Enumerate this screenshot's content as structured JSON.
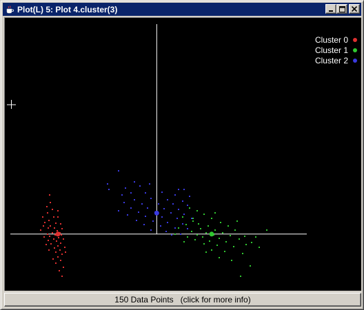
{
  "window": {
    "title": "Plot(L) 5: Plot 4.cluster(3)",
    "title_bar_color": "#0a246a"
  },
  "title_buttons": {
    "minimize_icon": "minimize-icon",
    "maximize_icon": "maximize-icon",
    "close_icon": "close-icon"
  },
  "status": {
    "label": "150 Data Points   (click for more info)"
  },
  "chart_data": {
    "type": "scatter",
    "background": "#000000",
    "axes_color": "#ffffff",
    "legend_position": "top-right",
    "series": [
      {
        "name": "Cluster 0",
        "color": "#e03030",
        "centroid": [
          -2.7,
          0.0
        ],
        "points": [
          [
            -2.92,
            0.74
          ],
          [
            -3.0,
            0.52
          ],
          [
            -2.85,
            0.47
          ],
          [
            -2.98,
            0.4
          ],
          [
            -3.12,
            0.33
          ],
          [
            -2.82,
            0.33
          ],
          [
            -2.7,
            0.32
          ],
          [
            -2.95,
            0.26
          ],
          [
            -3.05,
            0.22
          ],
          [
            -2.75,
            0.21
          ],
          [
            -2.62,
            0.2
          ],
          [
            -2.9,
            0.16
          ],
          [
            -2.97,
            0.12
          ],
          [
            -2.8,
            0.11
          ],
          [
            -2.58,
            0.1
          ],
          [
            -3.18,
            0.07
          ],
          [
            -2.72,
            0.06
          ],
          [
            -2.86,
            0.03
          ],
          [
            -2.65,
            0.02
          ],
          [
            -2.99,
            0.0
          ],
          [
            -2.78,
            -0.01
          ],
          [
            -2.6,
            -0.02
          ],
          [
            -2.92,
            -0.04
          ],
          [
            -3.08,
            -0.06
          ],
          [
            -2.68,
            -0.07
          ],
          [
            -2.82,
            -0.09
          ],
          [
            -2.55,
            -0.1
          ],
          [
            -2.96,
            -0.12
          ],
          [
            -2.74,
            -0.14
          ],
          [
            -2.62,
            -0.17
          ],
          [
            -2.88,
            -0.19
          ],
          [
            -2.7,
            -0.22
          ],
          [
            -2.52,
            -0.25
          ],
          [
            -2.8,
            -0.27
          ],
          [
            -2.64,
            -0.3
          ],
          [
            -2.76,
            -0.34
          ],
          [
            -2.58,
            -0.38
          ],
          [
            -2.7,
            -0.43
          ],
          [
            -2.62,
            -0.5
          ],
          [
            -2.75,
            -0.56
          ],
          [
            -2.55,
            -0.63
          ],
          [
            -2.66,
            -0.7
          ],
          [
            -2.58,
            -0.8
          ],
          [
            -3.02,
            -0.2
          ],
          [
            -2.83,
            -0.48
          ],
          [
            -2.9,
            0.6
          ],
          [
            -2.5,
            -0.35
          ],
          [
            -2.94,
            -0.3
          ],
          [
            -2.7,
            0.45
          ],
          [
            -3.1,
            0.15
          ]
        ]
      },
      {
        "name": "Cluster 1",
        "color": "#30c830",
        "centroid": [
          1.5,
          0.0
        ],
        "points": [
          [
            0.9,
            0.5
          ],
          [
            1.1,
            0.45
          ],
          [
            1.3,
            0.38
          ],
          [
            0.7,
            0.33
          ],
          [
            1.5,
            0.3
          ],
          [
            1.0,
            0.25
          ],
          [
            1.75,
            0.22
          ],
          [
            0.8,
            0.18
          ],
          [
            1.4,
            0.16
          ],
          [
            1.95,
            0.15
          ],
          [
            0.6,
            0.12
          ],
          [
            1.2,
            0.1
          ],
          [
            1.6,
            0.08
          ],
          [
            2.15,
            0.07
          ],
          [
            0.95,
            0.05
          ],
          [
            1.35,
            0.03
          ],
          [
            1.8,
            0.02
          ],
          [
            0.5,
            0.0
          ],
          [
            1.1,
            -0.01
          ],
          [
            1.55,
            -0.02
          ],
          [
            2.0,
            -0.03
          ],
          [
            2.4,
            -0.04
          ],
          [
            0.85,
            -0.05
          ],
          [
            1.25,
            -0.06
          ],
          [
            1.7,
            -0.08
          ],
          [
            2.25,
            -0.1
          ],
          [
            1.05,
            -0.11
          ],
          [
            1.45,
            -0.13
          ],
          [
            1.9,
            -0.15
          ],
          [
            2.6,
            -0.16
          ],
          [
            1.3,
            -0.19
          ],
          [
            1.65,
            -0.21
          ],
          [
            2.1,
            -0.24
          ],
          [
            2.8,
            -0.25
          ],
          [
            1.5,
            -0.3
          ],
          [
            1.85,
            -0.33
          ],
          [
            2.35,
            -0.37
          ],
          [
            1.7,
            -0.45
          ],
          [
            2.05,
            -0.5
          ],
          [
            2.55,
            -0.6
          ],
          [
            2.3,
            -0.8
          ],
          [
            1.0,
            0.3
          ],
          [
            1.35,
            -0.35
          ],
          [
            2.7,
            -0.05
          ],
          [
            3.0,
            0.08
          ],
          [
            0.75,
            -0.15
          ],
          [
            1.6,
            0.4
          ],
          [
            2.2,
            0.25
          ],
          [
            2.45,
            -0.2
          ],
          [
            1.15,
            0.2
          ]
        ]
      },
      {
        "name": "Cluster 2",
        "color": "#3a3ae0",
        "centroid": [
          0.0,
          0.4
        ],
        "points": [
          [
            -1.05,
            1.2
          ],
          [
            -1.35,
            0.95
          ],
          [
            -1.3,
            0.85
          ],
          [
            -0.6,
            1.0
          ],
          [
            -0.85,
            0.88
          ],
          [
            -0.45,
            0.92
          ],
          [
            -0.2,
            0.95
          ],
          [
            0.6,
            0.85
          ],
          [
            0.75,
            0.85
          ],
          [
            -0.7,
            0.78
          ],
          [
            -0.95,
            0.75
          ],
          [
            -0.3,
            0.78
          ],
          [
            0.15,
            0.8
          ],
          [
            0.5,
            0.74
          ],
          [
            0.9,
            0.72
          ],
          [
            -0.6,
            0.66
          ],
          [
            -0.15,
            0.68
          ],
          [
            0.3,
            0.66
          ],
          [
            0.7,
            0.63
          ],
          [
            -0.9,
            0.6
          ],
          [
            -0.4,
            0.58
          ],
          [
            0.05,
            0.58
          ],
          [
            0.45,
            0.57
          ],
          [
            0.85,
            0.55
          ],
          [
            -0.7,
            0.5
          ],
          [
            -0.25,
            0.5
          ],
          [
            0.2,
            0.48
          ],
          [
            0.6,
            0.47
          ],
          [
            -1.05,
            0.45
          ],
          [
            -0.5,
            0.42
          ],
          [
            -0.05,
            0.42
          ],
          [
            0.38,
            0.4
          ],
          [
            0.75,
            0.38
          ],
          [
            -0.8,
            0.36
          ],
          [
            -0.3,
            0.34
          ],
          [
            0.15,
            0.33
          ],
          [
            0.55,
            0.3
          ],
          [
            0.95,
            0.3
          ],
          [
            -0.55,
            0.26
          ],
          [
            -0.1,
            0.25
          ],
          [
            0.3,
            0.22
          ],
          [
            0.7,
            0.2
          ],
          [
            -0.35,
            0.18
          ],
          [
            0.1,
            0.15
          ],
          [
            0.5,
            0.12
          ],
          [
            0.85,
            0.1
          ],
          [
            0.25,
            0.05
          ],
          [
            -0.15,
            0.08
          ],
          [
            0.4,
            -0.02
          ],
          [
            0.65,
            0.0
          ]
        ]
      }
    ],
    "xlim": [
      -4.0,
      4.1
    ],
    "ylim": [
      -1.0,
      4.0
    ]
  }
}
